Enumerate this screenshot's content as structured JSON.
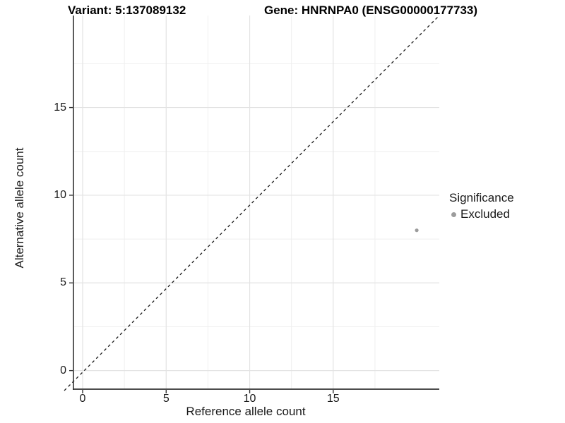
{
  "header": {
    "variant_label": "Variant: 5:137089132",
    "gene_label": "Gene: HNRNPA0 (ENSG00000177733)"
  },
  "chart_data": {
    "type": "scatter",
    "title": "Variant: 5:137089132 / Gene: HNRNPA0 (ENSG00000177733)",
    "xlabel": "Reference allele count",
    "ylabel": "Alternative allele count",
    "xlim": [
      -0.55,
      21.35
    ],
    "ylim": [
      -1.06,
      20.25
    ],
    "x_major_ticks": [
      0,
      5,
      10,
      15
    ],
    "y_major_ticks": [
      0,
      5,
      10,
      15
    ],
    "x_minor_ticks": [
      2.5,
      7.5,
      12.5,
      17.5
    ],
    "y_minor_ticks": [
      2.5,
      7.5,
      12.5,
      17.5
    ],
    "grid": "major and minor, light gray on white",
    "series": [
      {
        "name": "Excluded",
        "color": "#9c9c9c",
        "points": [
          {
            "x": 20,
            "y": 8
          }
        ]
      }
    ],
    "reference_line": {
      "kind": "identity",
      "slope": 1,
      "intercept": 0,
      "style": "dashed",
      "color": "#1a1a1a"
    },
    "legend": {
      "title": "Significance",
      "position": "right",
      "items": [
        {
          "label": "Excluded",
          "color": "#9c9c9c",
          "marker": "circle"
        }
      ]
    }
  },
  "colors": {
    "background": "#ffffff",
    "axis_line": "#333333",
    "tick_mark": "#333333",
    "tick_label": "#1a1a1a",
    "major_grid": "#e3e3e3",
    "minor_grid": "#efefef",
    "point": "#9c9c9c"
  }
}
